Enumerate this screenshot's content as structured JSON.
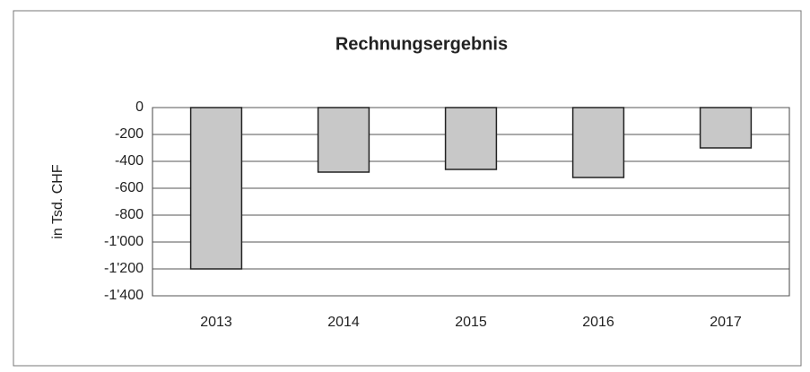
{
  "chart_data": {
    "type": "bar",
    "title": "Rechnungsergebnis",
    "y_label": "in Tsd. CHF",
    "categories": [
      "2013",
      "2014",
      "2015",
      "2016",
      "2017"
    ],
    "values": [
      -1200,
      -480,
      -460,
      -520,
      -300
    ],
    "color": "#c8c8c8",
    "ylim": [
      -1400,
      0
    ],
    "yticks": [
      0,
      -200,
      -400,
      -600,
      -800,
      {
        "value": -1000,
        "label": "-1'000"
      },
      {
        "value": -1200,
        "label": "-1'200"
      },
      {
        "value": -1400,
        "label": "-1'400"
      }
    ],
    "grid": true
  }
}
